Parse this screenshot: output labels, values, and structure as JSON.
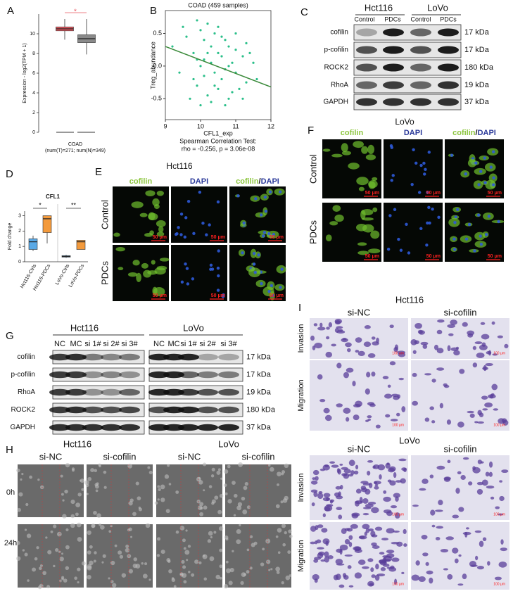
{
  "chart_data": [
    {
      "type": "box",
      "panel": "A",
      "ylabel": "Expression - log2(TPM + 1)",
      "xlabel": "COAD",
      "subtitle": "(num(T)=271; num(N)=349)",
      "annotation": "*",
      "ylim": [
        0,
        12
      ],
      "yticks": [
        0,
        2,
        4,
        6,
        8,
        10
      ],
      "boxes": [
        {
          "color": "#e8575f",
          "whisker_low": 9.4,
          "q1": 10.3,
          "median": 10.5,
          "q3": 10.7,
          "whisker_high": 11.5
        },
        {
          "color": "#8a8a8a",
          "whisker_low": 7.9,
          "q1": 9.1,
          "median": 9.5,
          "q3": 9.9,
          "whisker_high": 11.5
        }
      ]
    },
    {
      "type": "scatter",
      "panel": "B",
      "title": "COAD (459 samples)",
      "xlabel": "CFL1_exp",
      "ylabel": "Treg_abundance",
      "annotations": [
        "Spearman Correlation Test:",
        "rho = -0.256, p = 3.06e-08"
      ],
      "color": "#2bbf8a",
      "line_color": "#3a8a3a",
      "xlim": [
        9,
        12
      ],
      "ylim": [
        -0.82,
        0.85
      ],
      "xticks": [
        9,
        10,
        11,
        12
      ],
      "yticks": [
        {
          "value": -0.5,
          "label": "-0.5"
        },
        {
          "value": 0,
          "label": "0.0"
        },
        {
          "value": 0.5,
          "label": "0.5"
        }
      ],
      "x": [
        9.6,
        9.8,
        9.9,
        10.0,
        10.1,
        10.2,
        10.3,
        10.4,
        10.5,
        10.6,
        10.7,
        10.8,
        10.9,
        11.0,
        11.1,
        11.2,
        11.3,
        11.5,
        9.2,
        9.4,
        9.7,
        9.9,
        10.0,
        10.1,
        10.2,
        10.3,
        10.4,
        10.5,
        10.6,
        10.7,
        10.8,
        10.9,
        11.0,
        11.2,
        11.4,
        9.5,
        9.8,
        10.0,
        10.2,
        10.4,
        10.6,
        10.8,
        11.0,
        11.3,
        11.6,
        10.3,
        10.5,
        10.7,
        10.1,
        9.9
      ],
      "y": [
        0.45,
        0.2,
        -0.3,
        0.55,
        0.1,
        -0.45,
        0.3,
        -0.1,
        0.6,
        -0.2,
        0.4,
        -0.5,
        0.05,
        0.25,
        -0.35,
        0.15,
        -0.25,
        0.05,
        0.3,
        -0.1,
        -0.5,
        0.7,
        -0.6,
        0.4,
        0.2,
        -0.55,
        0.5,
        -0.35,
        0.15,
        -0.6,
        0.3,
        -0.4,
        -0.1,
        -0.5,
        0.2,
        0.6,
        -0.2,
        0.0,
        0.65,
        -0.3,
        0.45,
        0.0,
        0.5,
        0.35,
        -0.2,
        0.05,
        0.2,
        -0.05,
        -0.15,
        0.1
      ],
      "fit": {
        "x": [
          9,
          12
        ],
        "y": [
          0.3,
          -0.32
        ]
      }
    },
    {
      "type": "box",
      "panel": "D",
      "title": "CFL1",
      "ylabel": "Fold change",
      "ylim": [
        0,
        3.3
      ],
      "yticks": [
        0,
        1,
        2,
        3
      ],
      "categories": [
        "Hct116-Ctrls",
        "Hct116-PDCs",
        "LoVo-Ctrls",
        "LoVo-PDCs"
      ],
      "significance": [
        "*",
        "**"
      ],
      "boxes": [
        {
          "color": "#5aa9e6",
          "whisker_low": 0.7,
          "q1": 0.8,
          "median": 1.3,
          "q3": 1.5,
          "whisker_high": 1.7
        },
        {
          "color": "#f39a3c",
          "whisker_low": 1.2,
          "q1": 1.9,
          "median": 2.8,
          "q3": 3.0,
          "whisker_high": 3.0
        },
        {
          "color": "#5aa9e6",
          "whisker_low": 0.25,
          "q1": 0.3,
          "median": 0.35,
          "q3": 0.4,
          "whisker_high": 0.45
        },
        {
          "color": "#f39a3c",
          "whisker_low": 0.8,
          "q1": 0.8,
          "median": 1.3,
          "q3": 1.4,
          "whisker_high": 1.4
        }
      ]
    }
  ],
  "panels": {
    "labels": [
      "A",
      "B",
      "C",
      "D",
      "E",
      "F",
      "G",
      "H",
      "I"
    ],
    "C": {
      "groups": [
        "Hct116",
        "LoVo"
      ],
      "lanes": [
        "Control",
        "PDCs",
        "Control",
        "PDCs"
      ],
      "proteins": [
        "cofilin",
        "p-cofilin",
        "ROCK2",
        "RhoA",
        "GAPDH"
      ],
      "sizes": [
        "17 kDa",
        "17 kDa",
        "180 kDa",
        "19 kDa",
        "37 kDa"
      ]
    },
    "E": {
      "title": "Hct116",
      "stains": [
        "cofilin",
        "DAPI"
      ],
      "slash": "/",
      "rows": [
        "Control",
        "PDCs"
      ],
      "scale": "50 μm"
    },
    "F": {
      "title": "LoVo",
      "stains": [
        "cofilin",
        "DAPI"
      ],
      "slash": "/",
      "rows": [
        "Control",
        "PDCs"
      ],
      "scale": "50 μm"
    },
    "G": {
      "groups": [
        "Hct116",
        "LoVo"
      ],
      "lanes": [
        "NC",
        "MC",
        "si 1#",
        "si 2#",
        "si 3#"
      ],
      "proteins": [
        "cofilin",
        "p-cofilin",
        "RhoA",
        "ROCK2",
        "GAPDH"
      ],
      "sizes": [
        "17 kDa",
        "17 kDa",
        "19 kDa",
        "180 kDa",
        "37 kDa"
      ]
    },
    "H": {
      "groups": [
        "Hct116",
        "LoVo"
      ],
      "conditions": [
        "si-NC",
        "si-cofilin"
      ],
      "times": [
        "0h",
        "24h"
      ]
    },
    "I": {
      "groups": [
        "Hct116",
        "LoVo"
      ],
      "conditions": [
        "si-NC",
        "si-cofilin"
      ],
      "assays": [
        "Invasion",
        "Migration"
      ],
      "scale": "100 μm"
    }
  }
}
